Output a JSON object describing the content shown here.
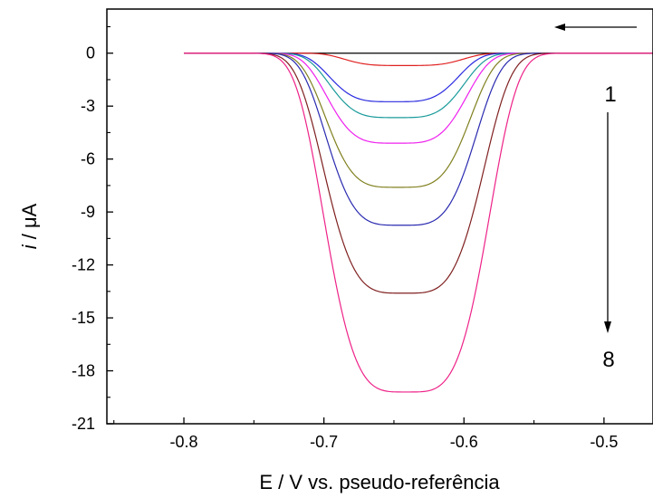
{
  "chart_data": {
    "type": "line",
    "title": "",
    "xlabel": "E / V vs. pseudo-referência",
    "ylabel_italic": "i",
    "ylabel_rest": " / μA",
    "xlim": [
      -0.855,
      -0.465
    ],
    "ylim": [
      -21,
      2.5
    ],
    "x_ticks": [
      -0.8,
      -0.7,
      -0.6,
      -0.5
    ],
    "x_tick_labels": [
      "-0.8",
      "-0.7",
      "-0.6",
      "-0.5"
    ],
    "y_ticks": [
      0,
      -3,
      -6,
      -9,
      -12,
      -15,
      -18,
      -21
    ],
    "y_tick_labels": [
      "0",
      "-3",
      "-6",
      "-9",
      "-12",
      "-15",
      "-18",
      "-21"
    ],
    "grid": false,
    "x_range": [
      -0.8,
      -0.465
    ],
    "annotations": {
      "scan_direction": "←",
      "series_start": "1",
      "series_end": "8"
    },
    "series": [
      {
        "color": "#000000",
        "peak_potential": -0.645,
        "peak_current": 0.0,
        "width": 0.05
      },
      {
        "color": "#e02020",
        "peak_potential": -0.643,
        "peak_current": -0.7,
        "width": 0.046
      },
      {
        "color": "#2a2ae0",
        "peak_potential": -0.65,
        "peak_current": -2.75,
        "width": 0.05
      },
      {
        "color": "#1a9a9a",
        "peak_potential": -0.648,
        "peak_current": -3.65,
        "width": 0.052
      },
      {
        "color": "#ee22ee",
        "peak_potential": -0.648,
        "peak_current": -5.1,
        "width": 0.054
      },
      {
        "color": "#808020",
        "peak_potential": -0.647,
        "peak_current": -7.6,
        "width": 0.056
      },
      {
        "color": "#2a2ab0",
        "peak_potential": -0.645,
        "peak_current": -9.75,
        "width": 0.058
      },
      {
        "color": "#802020",
        "peak_potential": -0.643,
        "peak_current": -13.6,
        "width": 0.062
      },
      {
        "color": "#ee2288",
        "peak_potential": -0.641,
        "peak_current": -19.2,
        "width": 0.064
      }
    ]
  }
}
